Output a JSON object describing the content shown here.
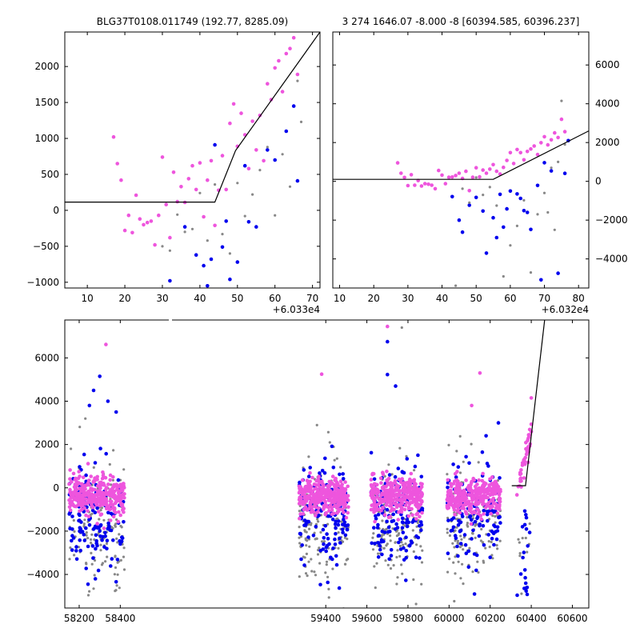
{
  "chart_data": [
    {
      "type": "scatter",
      "title": "BLG37T0108.011749 (192.77, 8285.09)",
      "x_offset_label": "+6.033e4",
      "xlim": [
        4,
        72
      ],
      "ylim": [
        -1080,
        2480
      ],
      "xticks": [
        10,
        20,
        30,
        40,
        50,
        60,
        70
      ],
      "yticks": [
        -1000,
        -500,
        0,
        500,
        1000,
        1500,
        2000
      ],
      "ytick_labels": [
        "−1000",
        "−500",
        "0",
        "500",
        "1000",
        "1500",
        "2000"
      ],
      "model_line": [
        [
          4,
          115
        ],
        [
          44,
          115
        ],
        [
          49.5,
          830
        ],
        [
          72,
          2480
        ]
      ],
      "series": [
        {
          "color": "#ee55dd",
          "points": [
            [
              17,
              1020
            ],
            [
              18,
              650
            ],
            [
              19,
              420
            ],
            [
              20,
              -280
            ],
            [
              21,
              -70
            ],
            [
              22,
              -310
            ],
            [
              23,
              210
            ],
            [
              24,
              -120
            ],
            [
              25,
              -200
            ],
            [
              26,
              -170
            ],
            [
              27,
              -150
            ],
            [
              28,
              -480
            ],
            [
              29,
              -70
            ],
            [
              30,
              740
            ],
            [
              31,
              80
            ],
            [
              32,
              -380
            ],
            [
              33,
              530
            ],
            [
              34,
              120
            ],
            [
              35,
              330
            ],
            [
              36,
              110
            ],
            [
              37,
              440
            ],
            [
              38,
              620
            ],
            [
              39,
              290
            ],
            [
              40,
              660
            ],
            [
              41,
              -90
            ],
            [
              42,
              420
            ],
            [
              43,
              690
            ],
            [
              44,
              -210
            ],
            [
              45,
              280
            ],
            [
              46,
              760
            ],
            [
              47,
              290
            ],
            [
              48,
              1210
            ],
            [
              49,
              1480
            ],
            [
              50,
              890
            ],
            [
              51,
              1350
            ],
            [
              52,
              1050
            ],
            [
              53,
              580
            ],
            [
              54,
              1240
            ],
            [
              55,
              840
            ],
            [
              56,
              1320
            ],
            [
              57,
              690
            ],
            [
              58,
              1760
            ],
            [
              59,
              1540
            ],
            [
              60,
              1980
            ],
            [
              61,
              2080
            ],
            [
              62,
              1650
            ],
            [
              63,
              2180
            ],
            [
              64,
              2250
            ],
            [
              65,
              2400
            ],
            [
              66,
              1890
            ]
          ]
        },
        {
          "color": "#0000ee",
          "points": [
            [
              32,
              -980
            ],
            [
              36,
              -230
            ],
            [
              39,
              -620
            ],
            [
              41,
              -770
            ],
            [
              42,
              -1050
            ],
            [
              43,
              -680
            ],
            [
              44,
              910
            ],
            [
              46,
              -510
            ],
            [
              47,
              -150
            ],
            [
              48,
              -960
            ],
            [
              50,
              -720
            ],
            [
              52,
              620
            ],
            [
              53,
              -160
            ],
            [
              55,
              -230
            ],
            [
              58,
              840
            ],
            [
              60,
              700
            ],
            [
              63,
              1100
            ],
            [
              65,
              1450
            ],
            [
              66,
              410
            ]
          ]
        },
        {
          "color": "#888888",
          "points": [
            [
              30,
              -500
            ],
            [
              32,
              -560
            ],
            [
              34,
              -60
            ],
            [
              36,
              -300
            ],
            [
              38,
              -260
            ],
            [
              40,
              240
            ],
            [
              42,
              -420
            ],
            [
              44,
              360
            ],
            [
              46,
              -330
            ],
            [
              48,
              -600
            ],
            [
              50,
              380
            ],
            [
              52,
              -80
            ],
            [
              54,
              220
            ],
            [
              56,
              560
            ],
            [
              58,
              880
            ],
            [
              60,
              -70
            ],
            [
              62,
              780
            ],
            [
              64,
              330
            ],
            [
              66,
              1800
            ],
            [
              67,
              1230
            ]
          ]
        }
      ]
    },
    {
      "type": "scatter",
      "title": "3 274 1646.07 -8.000 -8 [60394.585, 60396.237]",
      "x_offset_label": "+6.032e4",
      "xlim": [
        8,
        83
      ],
      "ylim": [
        -5500,
        7700
      ],
      "xticks": [
        10,
        20,
        30,
        40,
        50,
        60,
        70,
        80
      ],
      "yticks": [
        -4000,
        -2000,
        0,
        2000,
        4000,
        6000
      ],
      "ytick_labels": [
        "−4000",
        "−2000",
        "0",
        "2000",
        "4000",
        "6000"
      ],
      "model_line": [
        [
          8,
          100
        ],
        [
          55,
          100
        ],
        [
          83,
          2600
        ]
      ],
      "series": [
        {
          "color": "#ee55dd",
          "points": [
            [
              27,
              950
            ],
            [
              28,
              420
            ],
            [
              29,
              200
            ],
            [
              30,
              -220
            ],
            [
              31,
              340
            ],
            [
              32,
              -200
            ],
            [
              33,
              40
            ],
            [
              34,
              -240
            ],
            [
              35,
              -120
            ],
            [
              36,
              -150
            ],
            [
              37,
              -200
            ],
            [
              38,
              -380
            ],
            [
              39,
              560
            ],
            [
              40,
              320
            ],
            [
              41,
              -120
            ],
            [
              42,
              210
            ],
            [
              43,
              220
            ],
            [
              44,
              300
            ],
            [
              45,
              420
            ],
            [
              46,
              150
            ],
            [
              47,
              520
            ],
            [
              48,
              -480
            ],
            [
              49,
              210
            ],
            [
              50,
              700
            ],
            [
              51,
              230
            ],
            [
              52,
              580
            ],
            [
              53,
              420
            ],
            [
              54,
              630
            ],
            [
              55,
              860
            ],
            [
              56,
              520
            ],
            [
              57,
              380
            ],
            [
              58,
              720
            ],
            [
              59,
              1080
            ],
            [
              60,
              1480
            ],
            [
              61,
              920
            ],
            [
              62,
              1640
            ],
            [
              63,
              1480
            ],
            [
              64,
              1110
            ],
            [
              65,
              1540
            ],
            [
              66,
              1670
            ],
            [
              67,
              1820
            ],
            [
              68,
              1380
            ],
            [
              69,
              1990
            ],
            [
              70,
              2300
            ],
            [
              71,
              1880
            ],
            [
              72,
              2140
            ],
            [
              73,
              2500
            ],
            [
              74,
              2260
            ],
            [
              75,
              3200
            ],
            [
              76,
              2560
            ]
          ]
        },
        {
          "color": "#0000ee",
          "points": [
            [
              43,
              -790
            ],
            [
              45,
              -2000
            ],
            [
              46,
              -2620
            ],
            [
              48,
              -1230
            ],
            [
              50,
              -830
            ],
            [
              52,
              -1530
            ],
            [
              53,
              -3700
            ],
            [
              55,
              -1880
            ],
            [
              56,
              -2900
            ],
            [
              57,
              -670
            ],
            [
              58,
              -2360
            ],
            [
              59,
              -1420
            ],
            [
              60,
              -500
            ],
            [
              62,
              -650
            ],
            [
              63,
              -880
            ],
            [
              64,
              -1510
            ],
            [
              65,
              -1600
            ],
            [
              66,
              -2480
            ],
            [
              68,
              -210
            ],
            [
              69,
              -5080
            ],
            [
              70,
              960
            ],
            [
              72,
              540
            ],
            [
              74,
              -4740
            ],
            [
              76,
              410
            ],
            [
              77,
              2100
            ]
          ]
        },
        {
          "color": "#888888",
          "points": [
            [
              44,
              -5380
            ],
            [
              46,
              -380
            ],
            [
              48,
              -1100
            ],
            [
              50,
              200
            ],
            [
              52,
              -700
            ],
            [
              54,
              -300
            ],
            [
              56,
              -1250
            ],
            [
              58,
              -4900
            ],
            [
              60,
              -3300
            ],
            [
              62,
              -2300
            ],
            [
              64,
              -980
            ],
            [
              66,
              -4700
            ],
            [
              68,
              -1700
            ],
            [
              70,
              -600
            ],
            [
              71,
              -1600
            ],
            [
              72,
              700
            ],
            [
              73,
              -2500
            ],
            [
              74,
              1000
            ],
            [
              75,
              4150
            ],
            [
              76,
              1900
            ]
          ]
        }
      ]
    },
    {
      "type": "scatter",
      "title": "",
      "xlim": [
        58130,
        60680
      ],
      "ylim": [
        -5550,
        7750
      ],
      "xticks": [
        58200,
        58400,
        59400,
        59600,
        59800,
        60000,
        60200,
        60400,
        60600
      ],
      "yticks": [
        -4000,
        -2000,
        0,
        2000,
        4000,
        6000
      ],
      "ytick_labels": [
        "−4000",
        "−2000",
        "0",
        "2000",
        "4000",
        "6000"
      ],
      "axis_break_x": [
        58440,
        59240
      ],
      "model_line": [
        [
          60305,
          100
        ],
        [
          60372,
          100
        ],
        [
          60465,
          7750
        ]
      ],
      "seasons": [
        {
          "x0": 58150,
          "x1": 58420
        },
        {
          "x0": 59270,
          "x1": 59510
        },
        {
          "x0": 59620,
          "x1": 59870
        },
        {
          "x0": 59990,
          "x1": 60250
        },
        {
          "x0": 60330,
          "x1": 60400
        }
      ],
      "outliers": [
        {
          "color": "#ee55dd",
          "points": [
            [
              58330,
              6620
            ],
            [
              59380,
              5250
            ],
            [
              59700,
              7450
            ],
            [
              60110,
              3800
            ],
            [
              60150,
              5300
            ],
            [
              60400,
              4150
            ]
          ]
        },
        {
          "color": "#0000ee",
          "points": [
            [
              58300,
              5150
            ],
            [
              58340,
              4000
            ],
            [
              58380,
              3500
            ],
            [
              58270,
              4500
            ],
            [
              58250,
              3800
            ],
            [
              59700,
              6750
            ],
            [
              59700,
              5230
            ],
            [
              59740,
              4700
            ],
            [
              60180,
              2400
            ],
            [
              60240,
              3000
            ]
          ]
        },
        {
          "color": "#888888",
          "points": [
            [
              59770,
              7400
            ],
            [
              58230,
              3200
            ],
            [
              60070,
              1200
            ]
          ]
        }
      ],
      "series_colors": [
        "#888888",
        "#0000ee",
        "#ee55dd"
      ]
    }
  ]
}
